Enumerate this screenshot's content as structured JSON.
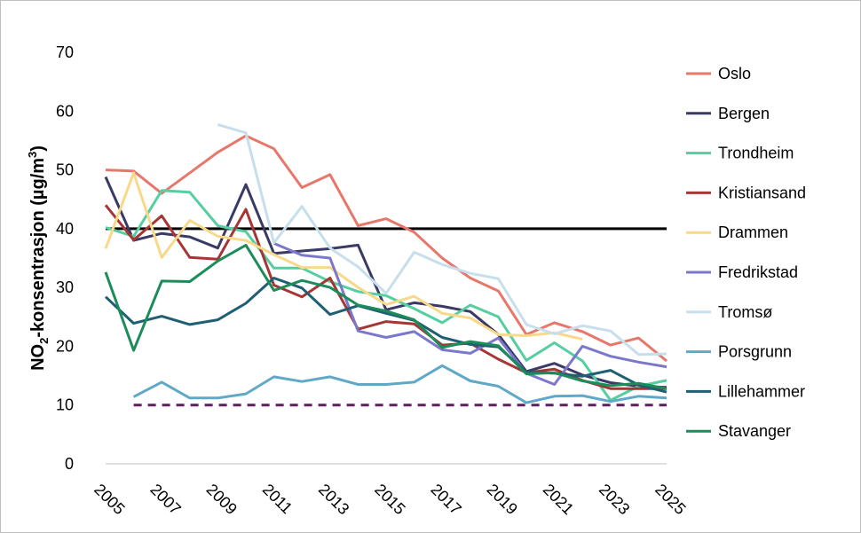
{
  "chart_data": {
    "type": "line",
    "ylabel_parts": {
      "before": "NO",
      "sub": "2",
      "middle": "-konsentrasjon (µg/m",
      "sup": "3",
      "after": ")"
    },
    "ylim": [
      0,
      70
    ],
    "yticks": [
      0,
      10,
      20,
      30,
      40,
      50,
      60,
      70
    ],
    "xlim": [
      2005,
      2025
    ],
    "xticks": [
      2005,
      2007,
      2009,
      2011,
      2013,
      2015,
      2017,
      2019,
      2021,
      2023,
      2025
    ],
    "legend_position": "right",
    "reference_lines": [
      {
        "y": 40,
        "color": "#000000",
        "style": "solid"
      },
      {
        "y": 10,
        "color": "#5b1f5e",
        "style": "dashed",
        "x_range": [
          2006,
          2025
        ]
      }
    ],
    "series": [
      {
        "name": "Oslo",
        "color": "#e8776b",
        "x": [
          2005,
          2006,
          2007,
          2008,
          2009,
          2010,
          2011,
          2012,
          2013,
          2014,
          2015,
          2016,
          2017,
          2018,
          2019,
          2020,
          2021,
          2022,
          2023,
          2024,
          2025
        ],
        "y": [
          50,
          49.8,
          46,
          49.5,
          53,
          55.8,
          53.6,
          47,
          49.2,
          40.5,
          41.7,
          39.4,
          35,
          31.6,
          29.4,
          22,
          24,
          22.5,
          20.2,
          21.4,
          17.5
        ]
      },
      {
        "name": "Bergen",
        "color": "#3a3a66",
        "x": [
          2005,
          2006,
          2007,
          2008,
          2009,
          2010,
          2011,
          2012,
          2013,
          2014,
          2015,
          2016,
          2017,
          2018,
          2019,
          2020,
          2021,
          2022,
          2023,
          2024,
          2025
        ],
        "y": [
          48.8,
          38,
          39.2,
          38.6,
          36.7,
          47.5,
          35.8,
          36.2,
          36.6,
          37.2,
          26.2,
          27.4,
          26.8,
          25.9,
          22,
          15.7,
          17.1,
          15.1,
          13.8,
          13.2,
          13
        ]
      },
      {
        "name": "Trondheim",
        "color": "#55cfa0",
        "x": [
          2005,
          2006,
          2007,
          2008,
          2009,
          2010,
          2011,
          2012,
          2013,
          2014,
          2015,
          2016,
          2017,
          2018,
          2019,
          2020,
          2021,
          2022,
          2023,
          2024,
          2025
        ],
        "y": [
          40.2,
          38.7,
          46.5,
          46.2,
          40.5,
          39.5,
          33.3,
          33.3,
          31,
          29.3,
          28.6,
          26.4,
          24,
          27,
          25,
          17.6,
          20.6,
          17.5,
          10.8,
          13.2,
          14.2
        ]
      },
      {
        "name": "Kristiansand",
        "color": "#a63535",
        "x": [
          2005,
          2006,
          2007,
          2008,
          2009,
          2010,
          2011,
          2012,
          2013,
          2014,
          2015,
          2016,
          2017,
          2018,
          2019,
          2020,
          2021,
          2022,
          2023,
          2024,
          2025
        ],
        "y": [
          44,
          38.1,
          42.2,
          35.1,
          34.8,
          43.3,
          30.4,
          28.4,
          31.6,
          22.9,
          24.2,
          23.8,
          20.2,
          20.5,
          17.8,
          15.5,
          16.1,
          14.2,
          12.8,
          12.8,
          12.8
        ]
      },
      {
        "name": "Drammen",
        "color": "#f8d98a",
        "x": [
          2005,
          2006,
          2007,
          2008,
          2009,
          2010,
          2011,
          2012,
          2013,
          2014,
          2015,
          2016,
          2017,
          2018,
          2019,
          2020,
          2021,
          2022
        ],
        "y": [
          36.6,
          49.5,
          35.1,
          41.4,
          38.7,
          38,
          35.6,
          33.4,
          33.4,
          30,
          27.1,
          28.5,
          25.6,
          24.8,
          22,
          21.8,
          22.3,
          21.2
        ]
      },
      {
        "name": "Fredrikstad",
        "color": "#7b78cc",
        "x": [
          2011,
          2012,
          2013,
          2014,
          2015,
          2016,
          2017,
          2018,
          2019,
          2020,
          2021,
          2022,
          2023,
          2024,
          2025
        ],
        "y": [
          37.5,
          35.5,
          35,
          22.6,
          21.5,
          22.5,
          19.4,
          18.8,
          21.4,
          15.4,
          13.5,
          20,
          18.3,
          17.3,
          16.5
        ]
      },
      {
        "name": "Tromsø",
        "color": "#c7dfec",
        "x": [
          2009,
          2010,
          2011,
          2012,
          2013,
          2014,
          2015,
          2016,
          2017,
          2018,
          2019,
          2020,
          2021,
          2022,
          2023,
          2024,
          2025
        ],
        "y": [
          57.7,
          56.3,
          37.6,
          43.8,
          36.7,
          33.5,
          29,
          36,
          33.9,
          32.4,
          31.5,
          23.7,
          22.1,
          23.5,
          22.6,
          18.6,
          18.7
        ]
      },
      {
        "name": "Porsgrunn",
        "color": "#5fa8c8",
        "x": [
          2006,
          2007,
          2008,
          2009,
          2010,
          2011,
          2012,
          2013,
          2014,
          2015,
          2016,
          2017,
          2018,
          2019,
          2020,
          2021,
          2022,
          2023,
          2024,
          2025
        ],
        "y": [
          11.4,
          13.9,
          11.2,
          11.2,
          11.9,
          14.8,
          14,
          14.8,
          13.5,
          13.5,
          13.9,
          16.7,
          14.1,
          13.2,
          10.4,
          11.5,
          11.6,
          10.6,
          11.5,
          11.2
        ]
      },
      {
        "name": "Lillehammer",
        "color": "#1f5f73",
        "x": [
          2005,
          2006,
          2007,
          2008,
          2009,
          2010,
          2011,
          2012,
          2013,
          2014,
          2015,
          2016,
          2017,
          2018,
          2019,
          2020,
          2021,
          2022,
          2023,
          2024,
          2025
        ],
        "y": [
          28.4,
          23.9,
          25.1,
          23.7,
          24.5,
          27.3,
          31.6,
          29.9,
          25.4,
          26.9,
          25.6,
          24.4,
          21.5,
          20.3,
          19.9,
          15.6,
          15.4,
          14.9,
          15.9,
          13.4,
          12.2
        ]
      },
      {
        "name": "Stavanger",
        "color": "#1b8c5a",
        "x": [
          2005,
          2006,
          2007,
          2008,
          2009,
          2010,
          2011,
          2012,
          2013,
          2014,
          2015,
          2016,
          2017,
          2018,
          2019,
          2020,
          2021,
          2022,
          2023,
          2024,
          2025
        ],
        "y": [
          32.6,
          19.3,
          31.1,
          31,
          34.5,
          37.2,
          29.5,
          31.2,
          30,
          27,
          26,
          24.5,
          19.8,
          20.8,
          20.1,
          15.3,
          15.5,
          14.1,
          13.3,
          13.7,
          12.8
        ]
      }
    ]
  }
}
